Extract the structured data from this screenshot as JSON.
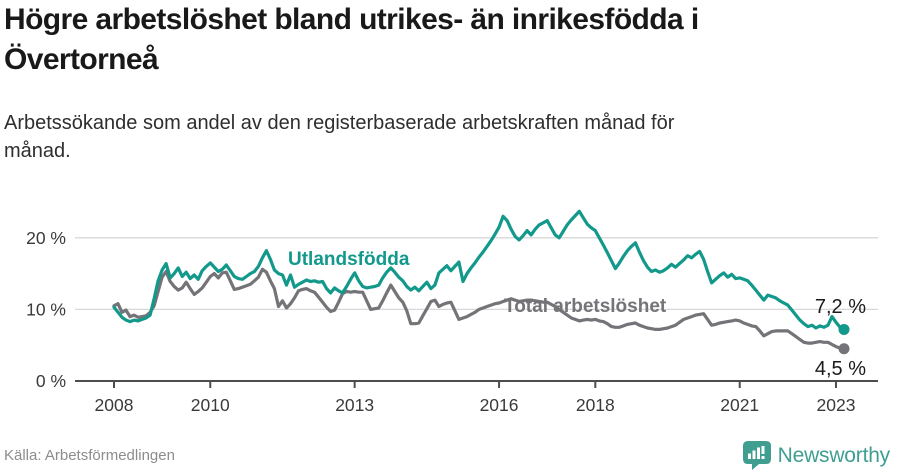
{
  "title": {
    "lines": [
      "Högre arbetslöshet bland utrikes- än inrikesfödda i",
      "Övertorneå"
    ]
  },
  "subtitle": {
    "lines": [
      "Arbetssökande som andel av den registerbaserade arbetskraften månad för",
      "månad."
    ]
  },
  "source": "Källa: Arbetsförmedlingen",
  "branding": {
    "name": "Newsworthy",
    "logo_icon": "speech-bubble-bar-chart-icon",
    "color": "#3f9e90"
  },
  "colors": {
    "teal_series": "#12998b",
    "gray_series": "#737378",
    "axis": "#4d4d4d",
    "grid": "#d8d8d8",
    "tick_label": "#3a3a3a",
    "end_label": "#1a1a1a"
  },
  "chart_data": {
    "type": "line",
    "title": "Högre arbetslöshet bland utrikes- än inrikesfödda i Övertorneå",
    "subtitle": "Arbetssökande som andel av den registerbaserade arbetskraften månad för månad.",
    "x_unit": "month",
    "x_start": "2008-01",
    "x_end": "2023-03",
    "ylim": [
      0,
      25
    ],
    "grid": true,
    "legend_position": "inline-labels",
    "y_ticks": [
      [
        0,
        "0 %"
      ],
      [
        10,
        "10 %"
      ],
      [
        20,
        "20 %"
      ]
    ],
    "x_ticks": [
      [
        2008,
        "2008"
      ],
      [
        2010,
        "2010"
      ],
      [
        2013,
        "2013"
      ],
      [
        2016,
        "2016"
      ],
      [
        2018,
        "2018"
      ],
      [
        2021,
        "2021"
      ],
      [
        2023,
        "2023"
      ]
    ],
    "series": [
      {
        "name": "Utlandsfödda",
        "color": "#12998b",
        "end_label": "7,2 %",
        "end_value": 7.2,
        "values": [
          10.3,
          9.6,
          8.9,
          8.5,
          8.3,
          8.5,
          8.4,
          8.6,
          8.8,
          9.2,
          11.5,
          14.0,
          15.5,
          16.4,
          14.4,
          15.0,
          15.8,
          14.6,
          15.2,
          14.3,
          14.8,
          14.2,
          15.4,
          16.0,
          16.5,
          15.9,
          15.3,
          15.6,
          16.2,
          15.4,
          14.6,
          14.3,
          14.2,
          14.6,
          15.0,
          15.3,
          16.0,
          17.2,
          18.2,
          17.0,
          15.5,
          15.0,
          14.8,
          13.4,
          14.8,
          13.1,
          13.5,
          13.8,
          14.1,
          13.9,
          14.0,
          13.8,
          13.9,
          12.9,
          12.3,
          13.0,
          12.6,
          12.3,
          13.2,
          14.2,
          15.1,
          14.0,
          13.2,
          13.0,
          13.1,
          13.2,
          13.4,
          14.4,
          15.2,
          15.8,
          15.2,
          14.5,
          14.0,
          13.2,
          12.7,
          13.1,
          12.6,
          13.2,
          13.8,
          12.9,
          13.4,
          15.1,
          15.6,
          16.1,
          15.4,
          16.0,
          16.6,
          13.9,
          15.0,
          15.8,
          16.5,
          17.3,
          18.0,
          18.8,
          19.6,
          20.5,
          21.5,
          23.0,
          22.4,
          21.2,
          20.2,
          19.7,
          20.3,
          21.0,
          20.4,
          21.2,
          21.8,
          22.1,
          22.4,
          21.4,
          20.4,
          20.0,
          20.9,
          21.8,
          22.5,
          23.1,
          23.7,
          22.8,
          21.9,
          21.4,
          21.0,
          20.0,
          19.0,
          17.9,
          16.8,
          15.7,
          16.5,
          17.4,
          18.2,
          18.8,
          19.3,
          18.0,
          16.8,
          15.9,
          15.3,
          15.5,
          15.2,
          15.4,
          15.8,
          16.3,
          15.9,
          16.4,
          16.9,
          17.5,
          17.2,
          17.7,
          18.1,
          17.0,
          15.3,
          13.7,
          14.2,
          14.7,
          15.1,
          14.5,
          14.9,
          14.3,
          14.4,
          14.2,
          14.0,
          13.4,
          12.7,
          12.0,
          11.3,
          12.0,
          11.8,
          11.6,
          11.2,
          10.9,
          10.6,
          9.9,
          9.2,
          8.5,
          8.0,
          7.6,
          7.8,
          7.4,
          7.7,
          7.5,
          7.8,
          9.0,
          8.2,
          7.5,
          7.2
        ]
      },
      {
        "name": "Total arbetslöshet",
        "color": "#737378",
        "end_label": "4,5 %",
        "end_value": 4.5,
        "values": [
          10.5,
          10.8,
          9.6,
          9.9,
          9.0,
          9.2,
          8.9,
          9.0,
          9.1,
          9.6,
          10.5,
          12.5,
          14.5,
          15.3,
          13.9,
          13.2,
          12.7,
          13.0,
          13.8,
          12.9,
          12.1,
          12.5,
          13.0,
          13.8,
          14.6,
          15.0,
          14.4,
          15.1,
          15.2,
          14.0,
          12.8,
          12.9,
          13.1,
          13.3,
          13.5,
          14.0,
          14.5,
          15.6,
          15.2,
          14.0,
          12.9,
          10.4,
          11.2,
          10.2,
          10.8,
          11.6,
          12.6,
          12.8,
          12.9,
          12.6,
          12.4,
          11.7,
          11.0,
          10.3,
          9.7,
          9.9,
          11.0,
          12.2,
          12.5,
          12.4,
          12.5,
          12.4,
          12.4,
          11.2,
          10.0,
          10.1,
          10.2,
          11.2,
          12.3,
          13.4,
          12.5,
          11.6,
          11.0,
          9.8,
          8.0,
          8.0,
          8.1,
          9.1,
          10.1,
          11.1,
          11.3,
          10.4,
          10.7,
          10.9,
          11.0,
          9.8,
          8.6,
          8.8,
          9.0,
          9.3,
          9.6,
          10.0,
          10.2,
          10.4,
          10.6,
          10.8,
          10.9,
          11.1,
          11.3,
          11.5,
          11.3,
          11.1,
          11.2,
          11.3,
          11.3,
          11.2,
          11.1,
          11.0,
          11.0,
          10.7,
          10.4,
          10.0,
          9.6,
          9.2,
          8.8,
          8.6,
          8.4,
          8.5,
          8.6,
          8.5,
          8.6,
          8.4,
          8.3,
          8.0,
          7.6,
          7.5,
          7.5,
          7.7,
          7.9,
          8.0,
          8.1,
          7.8,
          7.6,
          7.4,
          7.3,
          7.2,
          7.2,
          7.3,
          7.4,
          7.6,
          7.8,
          8.2,
          8.6,
          8.8,
          9.0,
          9.2,
          9.3,
          9.4,
          8.6,
          7.8,
          7.9,
          8.1,
          8.2,
          8.3,
          8.4,
          8.5,
          8.4,
          8.1,
          7.9,
          7.7,
          7.6,
          7.0,
          6.3,
          6.6,
          6.9,
          7.0,
          7.0,
          7.0,
          7.0,
          6.6,
          6.2,
          5.8,
          5.4,
          5.3,
          5.3,
          5.4,
          5.5,
          5.4,
          5.4,
          5.1,
          4.8,
          4.6,
          4.5
        ]
      }
    ]
  }
}
